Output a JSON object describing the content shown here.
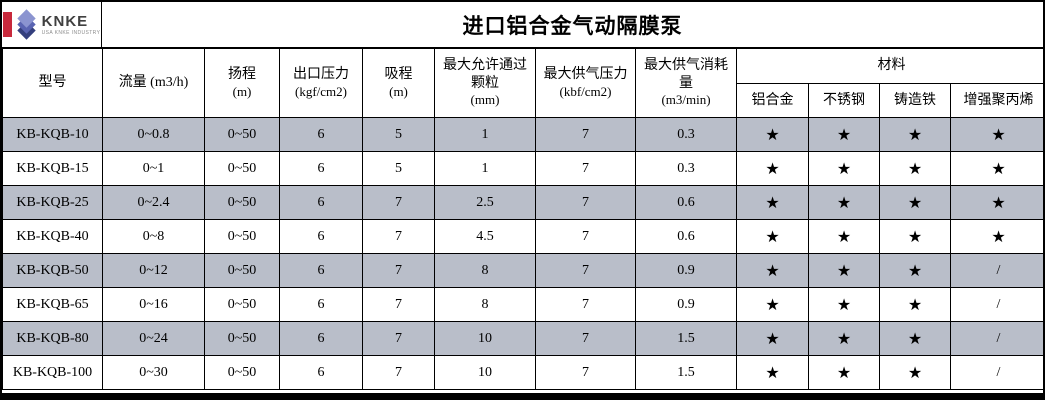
{
  "logo": {
    "name": "KNKE",
    "tagline": "USA KNKE INDUSTRY",
    "colors": {
      "bar": "#c8293c",
      "diamond_top": "#8b94d0",
      "diamond_mid": "#5a64b2",
      "diamond_bottom": "#343f7d"
    }
  },
  "title": "进口铝合金气动隔膜泵",
  "table": {
    "stripe_color": "#b9bec9",
    "headers": [
      {
        "main": "型号",
        "unit": ""
      },
      {
        "main": "流量 (m3/h)",
        "unit": ""
      },
      {
        "main": "扬程",
        "unit": "(m)"
      },
      {
        "main": "出口压力",
        "unit": "(kgf/cm2)"
      },
      {
        "main": "吸程",
        "unit": "(m)"
      },
      {
        "main": "最大允许通过颗粒",
        "unit": "(mm)"
      },
      {
        "main": "最大供气压力",
        "unit": "(kbf/cm2)"
      },
      {
        "main": "最大供气消耗量",
        "unit": "(m3/min)"
      }
    ],
    "materials_group": "材料",
    "material_columns": [
      "铝合金",
      "不锈钢",
      "铸造铁",
      "增强聚丙烯"
    ],
    "rows": [
      [
        "KB-KQB-10",
        "0~0.8",
        "0~50",
        "6",
        "5",
        "1",
        "7",
        "0.3",
        "★",
        "★",
        "★",
        "★"
      ],
      [
        "KB-KQB-15",
        "0~1",
        "0~50",
        "6",
        "5",
        "1",
        "7",
        "0.3",
        "★",
        "★",
        "★",
        "★"
      ],
      [
        "KB-KQB-25",
        "0~2.4",
        "0~50",
        "6",
        "7",
        "2.5",
        "7",
        "0.6",
        "★",
        "★",
        "★",
        "★"
      ],
      [
        "KB-KQB-40",
        "0~8",
        "0~50",
        "6",
        "7",
        "4.5",
        "7",
        "0.6",
        "★",
        "★",
        "★",
        "★"
      ],
      [
        "KB-KQB-50",
        "0~12",
        "0~50",
        "6",
        "7",
        "8",
        "7",
        "0.9",
        "★",
        "★",
        "★",
        "/"
      ],
      [
        "KB-KQB-65",
        "0~16",
        "0~50",
        "6",
        "7",
        "8",
        "7",
        "0.9",
        "★",
        "★",
        "★",
        "/"
      ],
      [
        "KB-KQB-80",
        "0~24",
        "0~50",
        "6",
        "7",
        "10",
        "7",
        "1.5",
        "★",
        "★",
        "★",
        "/"
      ],
      [
        "KB-KQB-100",
        "0~30",
        "0~50",
        "6",
        "7",
        "10",
        "7",
        "1.5",
        "★",
        "★",
        "★",
        "/"
      ]
    ]
  }
}
